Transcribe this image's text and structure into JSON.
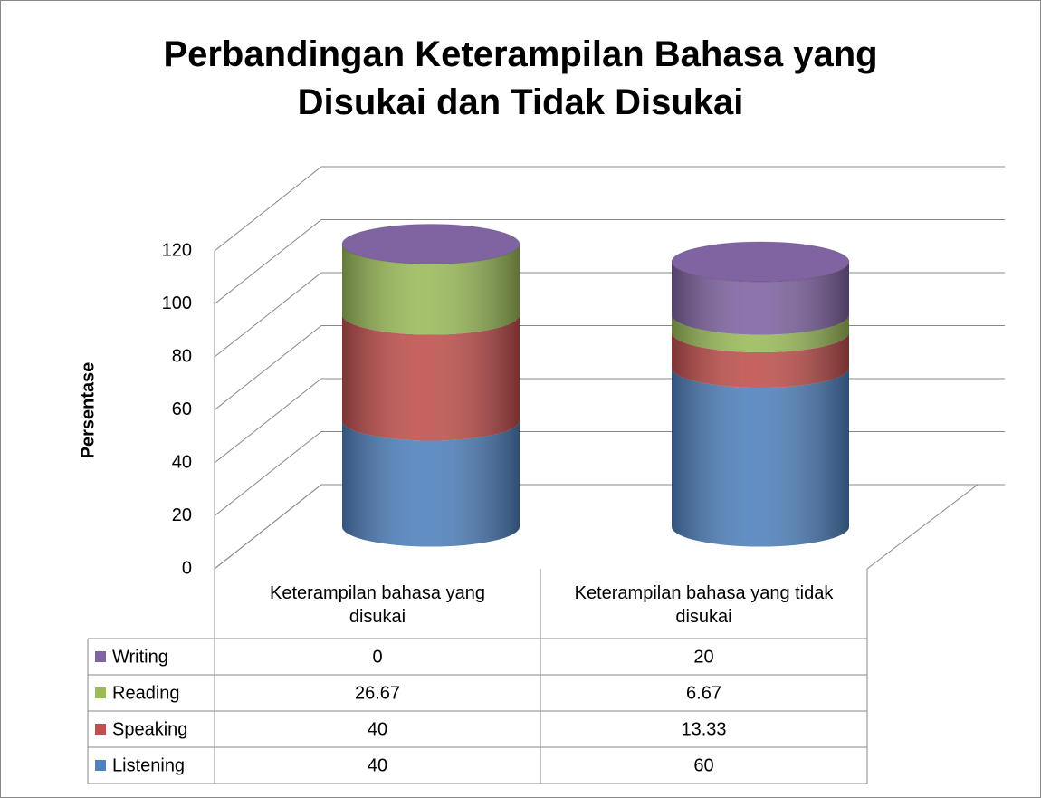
{
  "chart_data": {
    "type": "bar3d_cylinder_stacked",
    "title": "Perbandingan Keterampilan Bahasa yang Disukai dan Tidak Disukai",
    "y_label": "Persentase",
    "categories": [
      "Keterampilan bahasa yang disukai",
      "Keterampilan bahasa yang tidak disukai"
    ],
    "series": [
      {
        "name": "Listening",
        "color": "#4f81bd",
        "values": [
          40,
          60
        ]
      },
      {
        "name": "Speaking",
        "color": "#c0504d",
        "values": [
          40,
          13.33
        ]
      },
      {
        "name": "Reading",
        "color": "#9bbb59",
        "values": [
          26.67,
          6.67
        ]
      },
      {
        "name": "Writing",
        "color": "#8064a2",
        "values": [
          0,
          20
        ]
      }
    ],
    "ylim": [
      0,
      120
    ],
    "yticks": [
      0,
      20,
      40,
      60,
      80,
      100,
      120
    ],
    "grid": true,
    "data_table": true
  }
}
